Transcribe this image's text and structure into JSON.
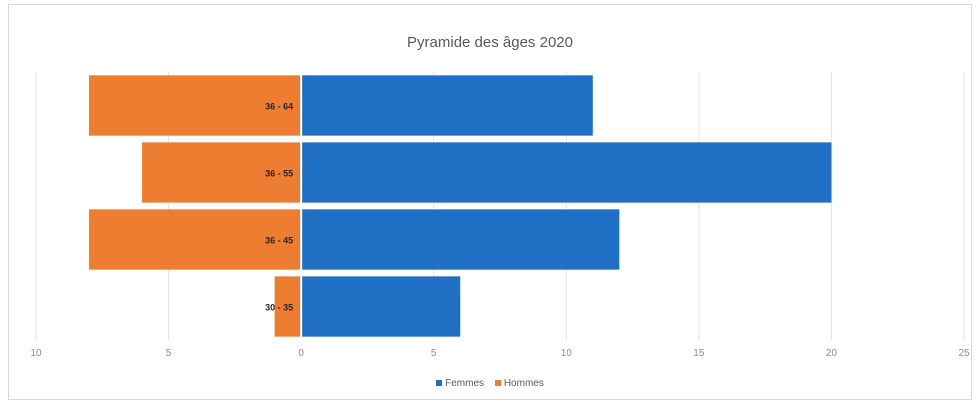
{
  "chart_data": {
    "type": "bar",
    "orientation": "horizontal",
    "title": "Pyramide des âges 2020",
    "categories": [
      "30 - 35",
      "36 - 45",
      "36 - 55",
      "36 - 64"
    ],
    "series": [
      {
        "name": "Femmes",
        "color": "#1f6fc5",
        "values": [
          6,
          12,
          20,
          11
        ]
      },
      {
        "name": "Hommes",
        "color": "#ed7d31",
        "values": [
          -1,
          -8,
          -6,
          -8
        ]
      }
    ],
    "xlim": [
      -10,
      25
    ],
    "x_tick_values": [
      -10,
      -5,
      0,
      5,
      10,
      15,
      20,
      25
    ],
    "x_tick_labels": [
      "10",
      "5",
      "0",
      "5",
      "10",
      "15",
      "20",
      "25"
    ],
    "xlabel": "",
    "ylabel": "",
    "grid": "vertical",
    "legend_position": "bottom"
  }
}
